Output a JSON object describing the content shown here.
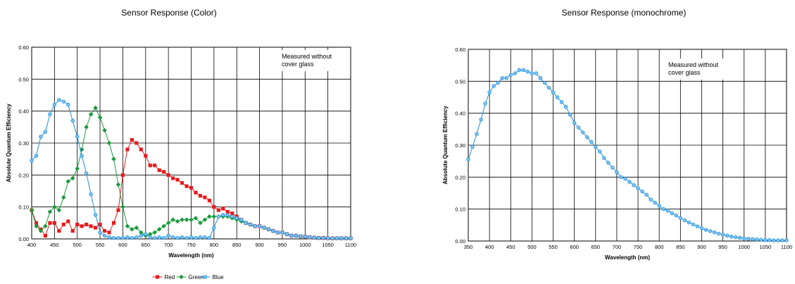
{
  "chart_data": [
    {
      "type": "line",
      "title": "Sensor Response (Color)",
      "xlabel": "Wavelength (nm)",
      "ylabel": "Absolute Quantum Efficiency",
      "xlim": [
        400,
        1100
      ],
      "ylim": [
        0,
        0.6
      ],
      "xticks": [
        "400",
        "450",
        "500",
        "550",
        "600",
        "650",
        "700",
        "750",
        "800",
        "850",
        "900",
        "950",
        "1000",
        "1050",
        "1100"
      ],
      "yticks": [
        "0.00",
        "0.10",
        "0.20",
        "0.30",
        "0.40",
        "0.50",
        "0.60"
      ],
      "annotation": [
        "Measured without",
        "cover glass"
      ],
      "grid": true,
      "legend_position": "bottom",
      "series": [
        {
          "name": "Red",
          "color": "#e8191c",
          "marker": "square",
          "x": [
            400,
            410,
            420,
            430,
            440,
            450,
            460,
            470,
            480,
            490,
            500,
            510,
            520,
            530,
            540,
            550,
            560,
            570,
            580,
            590,
            600,
            610,
            620,
            630,
            640,
            650,
            660,
            670,
            680,
            690,
            700,
            710,
            720,
            730,
            740,
            750,
            760,
            770,
            780,
            790,
            800,
            810,
            820,
            830,
            840,
            850,
            860,
            870,
            880,
            890,
            900,
            910,
            920,
            930,
            940,
            950,
            960,
            970,
            980,
            990,
            1000,
            1010,
            1020,
            1030,
            1040,
            1050,
            1060,
            1070,
            1080,
            1090,
            1100
          ],
          "y": [
            0.09,
            0.05,
            0.03,
            0.01,
            0.05,
            0.05,
            0.025,
            0.045,
            0.055,
            0.025,
            0.045,
            0.04,
            0.045,
            0.04,
            0.035,
            0.045,
            0.025,
            0.02,
            0.05,
            0.09,
            0.2,
            0.28,
            0.31,
            0.3,
            0.28,
            0.26,
            0.23,
            0.23,
            0.215,
            0.21,
            0.2,
            0.19,
            0.185,
            0.175,
            0.165,
            0.16,
            0.145,
            0.135,
            0.13,
            0.12,
            0.1,
            0.09,
            0.095,
            0.085,
            0.08,
            0.07,
            0.06,
            0.05,
            0.045,
            0.04,
            0.04,
            0.035,
            0.03,
            0.025,
            0.02,
            0.02,
            0.015,
            0.01,
            0.01,
            0.008,
            0.007,
            0.005,
            0.004,
            0.003,
            0.003,
            0.002,
            0.002,
            0.002,
            0.002,
            0.002,
            0.002
          ]
        },
        {
          "name": "Green",
          "color": "#1a9a3c",
          "marker": "diamond",
          "x": [
            400,
            410,
            420,
            430,
            440,
            450,
            460,
            470,
            480,
            490,
            500,
            510,
            520,
            530,
            540,
            550,
            560,
            570,
            580,
            590,
            600,
            610,
            620,
            630,
            640,
            650,
            660,
            670,
            680,
            690,
            700,
            710,
            720,
            730,
            740,
            750,
            760,
            770,
            780,
            790,
            800,
            810,
            820,
            830,
            840,
            850,
            860,
            870,
            880,
            890,
            900,
            910,
            920,
            930,
            940,
            950,
            960,
            970,
            980,
            990,
            1000,
            1010,
            1020,
            1030,
            1040,
            1050,
            1060,
            1070,
            1080,
            1090,
            1100
          ],
          "y": [
            0.09,
            0.04,
            0.025,
            0.04,
            0.085,
            0.1,
            0.09,
            0.13,
            0.18,
            0.19,
            0.22,
            0.28,
            0.35,
            0.39,
            0.41,
            0.38,
            0.34,
            0.3,
            0.25,
            0.17,
            0.1,
            0.04,
            0.03,
            0.035,
            0.02,
            0.01,
            0.015,
            0.02,
            0.03,
            0.04,
            0.05,
            0.06,
            0.055,
            0.06,
            0.06,
            0.06,
            0.065,
            0.05,
            0.06,
            0.07,
            0.07,
            0.07,
            0.07,
            0.07,
            0.065,
            0.06,
            0.055,
            0.05,
            0.045,
            0.04,
            0.04,
            0.035,
            0.03,
            0.025,
            0.02,
            0.02,
            0.015,
            0.01,
            0.01,
            0.008,
            0.007,
            0.005,
            0.004,
            0.003,
            0.003,
            0.002,
            0.002,
            0.002,
            0.002,
            0.002,
            0.002
          ]
        },
        {
          "name": "Blue",
          "color": "#1e8fe0",
          "marker": "circle",
          "x": [
            400,
            410,
            420,
            430,
            440,
            450,
            460,
            470,
            480,
            490,
            500,
            510,
            520,
            530,
            540,
            550,
            560,
            570,
            580,
            590,
            600,
            610,
            620,
            630,
            640,
            650,
            660,
            670,
            680,
            690,
            700,
            710,
            720,
            730,
            740,
            750,
            760,
            770,
            780,
            790,
            800,
            810,
            820,
            830,
            840,
            850,
            860,
            870,
            880,
            890,
            900,
            910,
            920,
            930,
            940,
            950,
            960,
            970,
            980,
            990,
            1000,
            1010,
            1020,
            1030,
            1040,
            1050,
            1060,
            1070,
            1080,
            1090,
            1100
          ],
          "y": [
            0.245,
            0.26,
            0.32,
            0.335,
            0.39,
            0.42,
            0.435,
            0.43,
            0.42,
            0.37,
            0.32,
            0.26,
            0.205,
            0.14,
            0.075,
            0.02,
            0.01,
            0.005,
            0.003,
            0.003,
            0.003,
            0.005,
            0.003,
            0.005,
            0.01,
            0.015,
            0.005,
            0.003,
            0.005,
            0.003,
            0.01,
            0.005,
            0.003,
            0.005,
            0.003,
            0.005,
            0.003,
            0.005,
            0.005,
            0.003,
            0.035,
            0.07,
            0.075,
            0.075,
            0.07,
            0.065,
            0.06,
            0.05,
            0.045,
            0.04,
            0.04,
            0.035,
            0.03,
            0.025,
            0.02,
            0.02,
            0.015,
            0.01,
            0.01,
            0.008,
            0.007,
            0.005,
            0.004,
            0.003,
            0.003,
            0.002,
            0.002,
            0.002,
            0.002,
            0.002,
            0.002
          ]
        }
      ]
    },
    {
      "type": "line",
      "title": "Sensor Response (monochrome)",
      "xlabel": "Wavelength (nm)",
      "ylabel": "Absolute Quantum Efficiency",
      "xlim": [
        350,
        1100
      ],
      "ylim": [
        0,
        0.6
      ],
      "xticks": [
        "350",
        "400",
        "450",
        "500",
        "550",
        "600",
        "650",
        "700",
        "750",
        "800",
        "850",
        "900",
        "950",
        "1000",
        "1050",
        "1100"
      ],
      "yticks": [
        "0.00",
        "0.10",
        "0.20",
        "0.30",
        "0.40",
        "0.50",
        "0.60"
      ],
      "annotation": [
        "Measured without",
        "cover glass"
      ],
      "grid": true,
      "series": [
        {
          "color": "#1e8fe0",
          "marker": "circle",
          "x": [
            350,
            360,
            370,
            380,
            390,
            400,
            410,
            420,
            430,
            440,
            450,
            460,
            470,
            480,
            490,
            500,
            510,
            520,
            530,
            540,
            550,
            560,
            570,
            580,
            590,
            600,
            610,
            620,
            630,
            640,
            650,
            660,
            670,
            680,
            690,
            700,
            710,
            720,
            730,
            740,
            750,
            760,
            770,
            780,
            790,
            800,
            810,
            820,
            830,
            840,
            850,
            860,
            870,
            880,
            890,
            900,
            910,
            920,
            930,
            940,
            950,
            960,
            970,
            980,
            990,
            1000,
            1010,
            1020,
            1030,
            1040,
            1050,
            1060,
            1070,
            1080,
            1090,
            1100
          ],
          "y": [
            0.255,
            0.295,
            0.335,
            0.38,
            0.43,
            0.465,
            0.485,
            0.495,
            0.51,
            0.51,
            0.52,
            0.525,
            0.535,
            0.535,
            0.53,
            0.525,
            0.525,
            0.51,
            0.495,
            0.48,
            0.465,
            0.45,
            0.435,
            0.42,
            0.395,
            0.37,
            0.355,
            0.34,
            0.325,
            0.31,
            0.295,
            0.28,
            0.26,
            0.245,
            0.23,
            0.215,
            0.2,
            0.195,
            0.185,
            0.175,
            0.165,
            0.155,
            0.145,
            0.13,
            0.12,
            0.11,
            0.1,
            0.095,
            0.087,
            0.08,
            0.072,
            0.065,
            0.058,
            0.052,
            0.046,
            0.04,
            0.035,
            0.031,
            0.027,
            0.023,
            0.02,
            0.017,
            0.014,
            0.012,
            0.01,
            0.008,
            0.007,
            0.006,
            0.005,
            0.004,
            0.003,
            0.003,
            0.002,
            0.002,
            0.002,
            0.002
          ]
        }
      ]
    }
  ]
}
